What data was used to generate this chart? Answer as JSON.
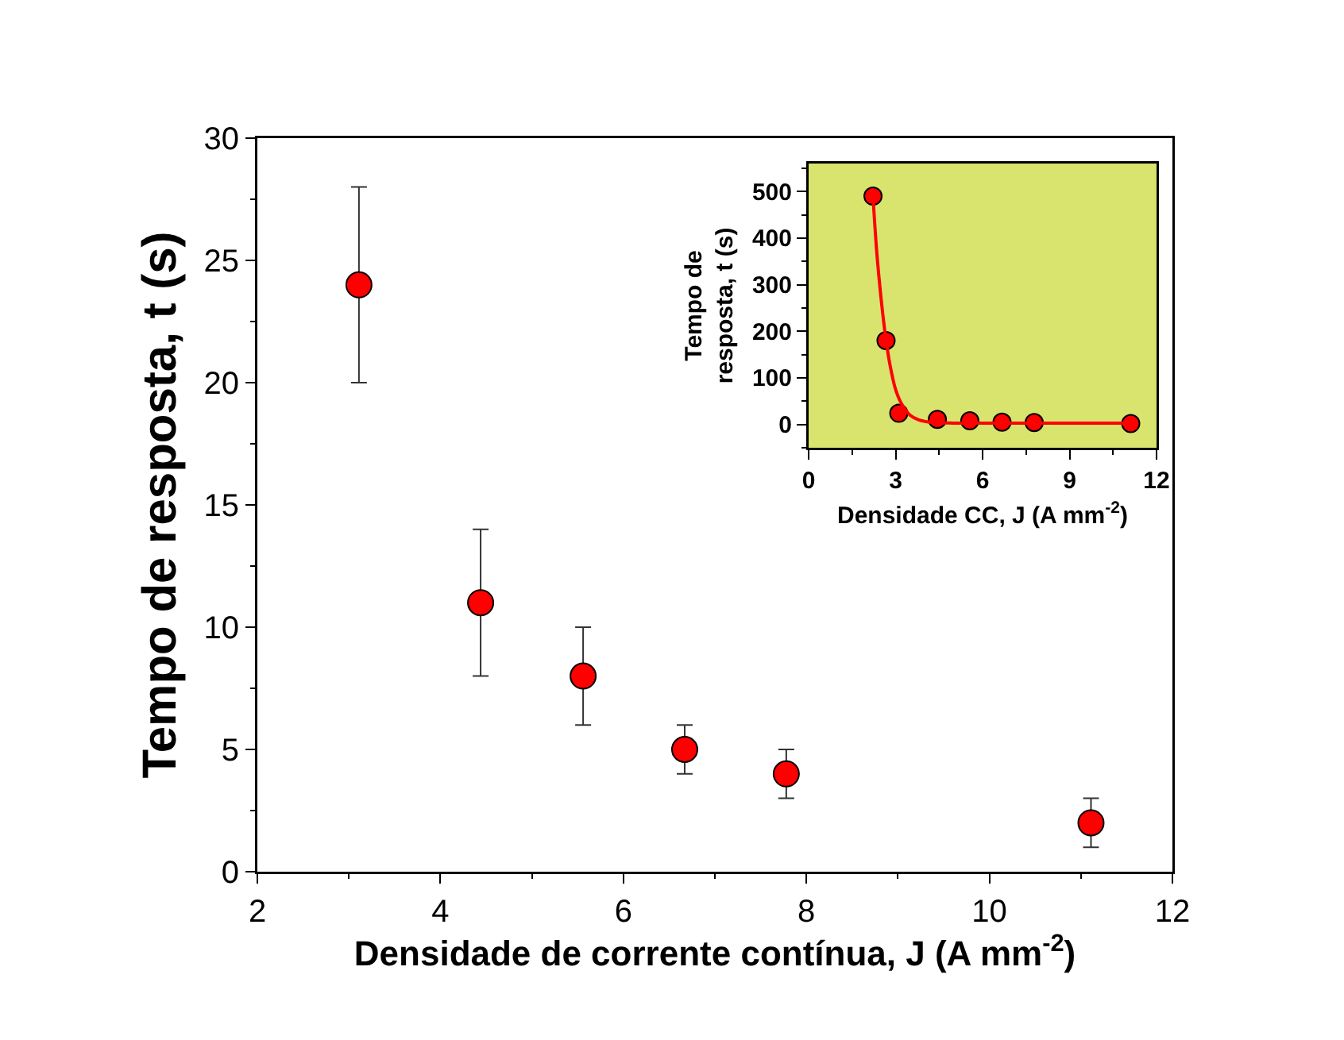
{
  "chart_data": [
    {
      "type": "scatter",
      "xlabel": "Densidade de corrente contínua, J (A mm$^{-2}$)",
      "ylabel": "Tempo de resposta, t (s)",
      "x": [
        3.11,
        4.44,
        5.56,
        6.67,
        7.78,
        11.11
      ],
      "series": [
        {
          "color": "#ff0000",
          "values": [
            24,
            11,
            8,
            5,
            4,
            2
          ],
          "errors": [
            4,
            3,
            2,
            1,
            1,
            1
          ]
        }
      ],
      "xlim": [
        2,
        12
      ],
      "xticks": [
        2,
        4,
        6,
        8,
        10,
        12
      ],
      "ylim": [
        0,
        30
      ],
      "yticks": [
        0,
        5,
        10,
        15,
        20,
        25,
        30
      ],
      "grid": false,
      "marker": "circle"
    },
    {
      "type": "scatter",
      "xlabel": "Densidade CC, J (A mm$^{-2}$)",
      "ylabel": "Tempo de\nresposta, t (s)",
      "series": [
        {
          "color": "#ff0000",
          "x": [
            2.22,
            2.67,
            3.11,
            4.44,
            5.56,
            6.67,
            7.78,
            11.11
          ],
          "values": [
            490,
            180,
            24,
            11,
            8,
            5,
            4,
            2
          ]
        },
        {
          "type": "line",
          "color": "#ff0000",
          "marker": "none",
          "line_style": "solid",
          "x": [
            2.22,
            2.35,
            2.5,
            2.65,
            2.8,
            3.0,
            3.2,
            3.5,
            3.8,
            4.2,
            5,
            7,
            9,
            11.11
          ],
          "values": [
            490,
            370,
            270,
            190,
            130,
            75,
            45,
            20,
            10,
            5,
            3,
            3,
            3,
            3
          ]
        }
      ],
      "xlim": [
        0,
        12
      ],
      "xticks": [
        0,
        3,
        6,
        9,
        12
      ],
      "ylim": [
        -50,
        560
      ],
      "yticks": [
        0,
        100,
        200,
        300,
        400,
        500
      ],
      "grid": false,
      "marker": "circle"
    }
  ]
}
